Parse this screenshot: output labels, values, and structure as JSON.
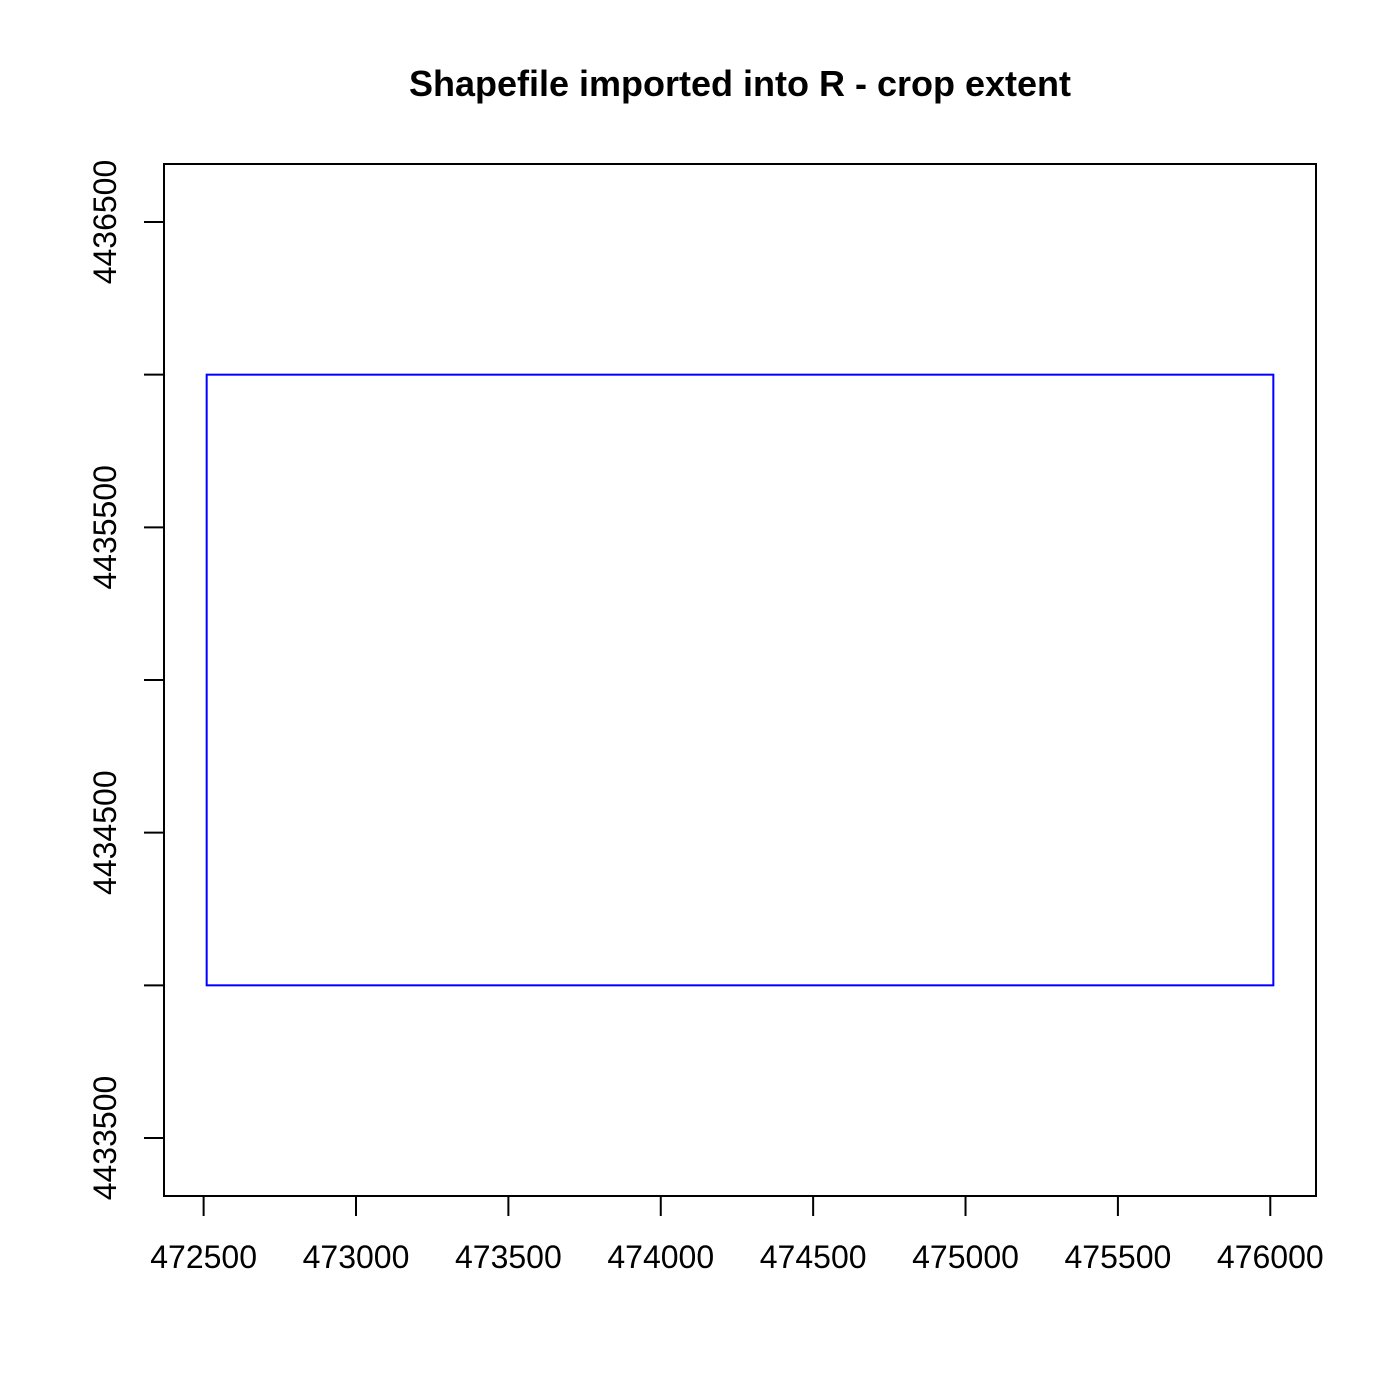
{
  "chart_data": {
    "type": "polygon",
    "title": "Shapefile imported into R - crop extent",
    "xlabel": "",
    "ylabel": "",
    "xlim": [
      472370,
      476150
    ],
    "ylim": [
      4433310,
      4436690
    ],
    "x_ticks": [
      472500,
      473000,
      473500,
      474000,
      474500,
      475000,
      475500,
      476000
    ],
    "x_tick_labels": [
      "472500",
      "473000",
      "473500",
      "474000",
      "474500",
      "475000",
      "475500",
      "476000"
    ],
    "y_ticks": [
      4433500,
      4434000,
      4434500,
      4435000,
      4435500,
      4436000,
      4436500
    ],
    "y_tick_labels": [
      "4433500",
      "",
      "4434500",
      "",
      "4435500",
      "",
      "4436500"
    ],
    "grid": false,
    "series": [
      {
        "shape": "rectangle",
        "color": "#0000ff",
        "x": [
          472510,
          476010
        ],
        "y": [
          4434000,
          4436000
        ]
      }
    ]
  }
}
